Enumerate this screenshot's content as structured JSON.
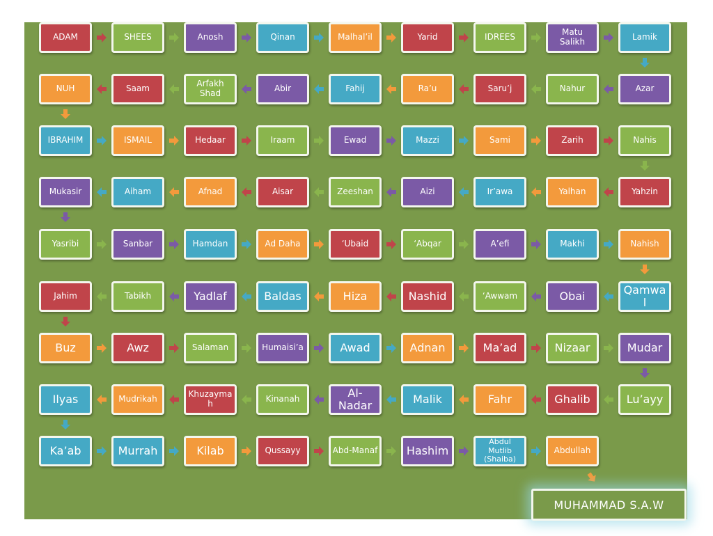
{
  "colors": {
    "red": "#c0444a",
    "green": "#8ab54d",
    "purple": "#7b5aa6",
    "blue": "#45a9c5",
    "orange": "#f39a3c",
    "board": "#7a9a4a",
    "border": "#f4f7ee"
  },
  "rows": [
    {
      "dir": "ltr",
      "tiles": [
        {
          "name": "ADAM",
          "color": "red"
        },
        {
          "name": "SHEES",
          "color": "green"
        },
        {
          "name": "Anosh",
          "color": "purple"
        },
        {
          "name": "Qinan",
          "color": "blue"
        },
        {
          "name": "Malhal’il",
          "color": "orange"
        },
        {
          "name": "Yarid",
          "color": "red"
        },
        {
          "name": "IDREES",
          "color": "green"
        },
        {
          "name": "Matu Salikh",
          "color": "purple"
        },
        {
          "name": "Lamik",
          "color": "blue"
        }
      ]
    },
    {
      "dir": "rtl",
      "tiles": [
        {
          "name": "Azar",
          "color": "purple"
        },
        {
          "name": "Nahur",
          "color": "green"
        },
        {
          "name": "Saru’j",
          "color": "red"
        },
        {
          "name": "Ra’u",
          "color": "orange"
        },
        {
          "name": "Fahij",
          "color": "blue"
        },
        {
          "name": "Abir",
          "color": "purple"
        },
        {
          "name": "Arfakh Shad",
          "color": "green"
        },
        {
          "name": "Saam",
          "color": "red"
        },
        {
          "name": "NUH",
          "color": "orange"
        }
      ]
    },
    {
      "dir": "ltr",
      "tiles": [
        {
          "name": "IBRAHIM",
          "color": "blue"
        },
        {
          "name": "ISMAIL",
          "color": "orange"
        },
        {
          "name": "Hedaar",
          "color": "red"
        },
        {
          "name": "Iraam",
          "color": "green"
        },
        {
          "name": "Ewad",
          "color": "purple"
        },
        {
          "name": "Mazzi",
          "color": "blue"
        },
        {
          "name": "Sami",
          "color": "orange"
        },
        {
          "name": "Zarih",
          "color": "red"
        },
        {
          "name": "Nahis",
          "color": "green"
        }
      ]
    },
    {
      "dir": "rtl",
      "tiles": [
        {
          "name": "Yahzin",
          "color": "red"
        },
        {
          "name": "Yalhan",
          "color": "orange"
        },
        {
          "name": "Ir’awa",
          "color": "blue"
        },
        {
          "name": "Aizi",
          "color": "purple"
        },
        {
          "name": "Zeeshan",
          "color": "green"
        },
        {
          "name": "Aisar",
          "color": "red"
        },
        {
          "name": "Afnad",
          "color": "orange"
        },
        {
          "name": "Aiham",
          "color": "blue"
        },
        {
          "name": "Mukasir",
          "color": "purple"
        }
      ]
    },
    {
      "dir": "ltr",
      "tiles": [
        {
          "name": "Yasribi",
          "color": "green"
        },
        {
          "name": "Sanbar",
          "color": "purple"
        },
        {
          "name": "Hamdan",
          "color": "blue"
        },
        {
          "name": "Ad Daha",
          "color": "orange"
        },
        {
          "name": "‘Ubaid",
          "color": "red"
        },
        {
          "name": "‘Abqar",
          "color": "green"
        },
        {
          "name": "A’efi",
          "color": "purple"
        },
        {
          "name": "Makhi",
          "color": "blue"
        },
        {
          "name": "Nahish",
          "color": "orange"
        }
      ]
    },
    {
      "dir": "rtl",
      "tiles": [
        {
          "name": "Qamwa l",
          "color": "blue",
          "big": true
        },
        {
          "name": "Obai",
          "color": "purple",
          "big": true
        },
        {
          "name": "‘Awwam",
          "color": "green"
        },
        {
          "name": "Nashid",
          "color": "red",
          "big": true
        },
        {
          "name": "Hiza",
          "color": "orange",
          "big": true
        },
        {
          "name": "Baldas",
          "color": "blue",
          "big": true
        },
        {
          "name": "Yadlaf",
          "color": "purple",
          "big": true
        },
        {
          "name": "Tabikh",
          "color": "green"
        },
        {
          "name": "Jahim",
          "color": "red"
        }
      ]
    },
    {
      "dir": "ltr",
      "tiles": [
        {
          "name": "Buz",
          "color": "orange",
          "big": true
        },
        {
          "name": "Awz",
          "color": "red",
          "big": true
        },
        {
          "name": "Salaman",
          "color": "green"
        },
        {
          "name": "Humaisi’a",
          "color": "purple"
        },
        {
          "name": "Awad",
          "color": "blue",
          "big": true
        },
        {
          "name": "Adnan",
          "color": "orange",
          "big": true
        },
        {
          "name": "Ma’ad",
          "color": "red",
          "big": true
        },
        {
          "name": "Nizaar",
          "color": "green",
          "big": true
        },
        {
          "name": "Mudar",
          "color": "purple",
          "big": true
        }
      ]
    },
    {
      "dir": "rtl",
      "tiles": [
        {
          "name": "Lu’ayy",
          "color": "green",
          "big": true
        },
        {
          "name": "Ghalib",
          "color": "red",
          "big": true
        },
        {
          "name": "Fahr",
          "color": "orange",
          "big": true
        },
        {
          "name": "Malik",
          "color": "blue",
          "big": true
        },
        {
          "name": "Al-Nadar",
          "color": "purple",
          "big": true
        },
        {
          "name": "Kinanah",
          "color": "green"
        },
        {
          "name": "Khuzaymah",
          "color": "red"
        },
        {
          "name": "Mudrikah",
          "color": "orange"
        },
        {
          "name": "Ilyas",
          "color": "blue",
          "big": true
        }
      ]
    },
    {
      "dir": "ltr",
      "tiles": [
        {
          "name": "Ka’ab",
          "color": "blue",
          "big": true
        },
        {
          "name": "Murrah",
          "color": "blue",
          "big": true
        },
        {
          "name": "Kilab",
          "color": "orange",
          "big": true
        },
        {
          "name": "Qussayy",
          "color": "red"
        },
        {
          "name": "Abd-Manaf",
          "color": "green"
        },
        {
          "name": "Hashim",
          "color": "purple",
          "big": true
        },
        {
          "name": "Abdul Mutlib (Shaiba)",
          "color": "blue",
          "tiny": true
        },
        {
          "name": "Abdullah",
          "color": "orange"
        }
      ]
    }
  ],
  "final": {
    "name": "MUHAMMAD S.A.W"
  }
}
